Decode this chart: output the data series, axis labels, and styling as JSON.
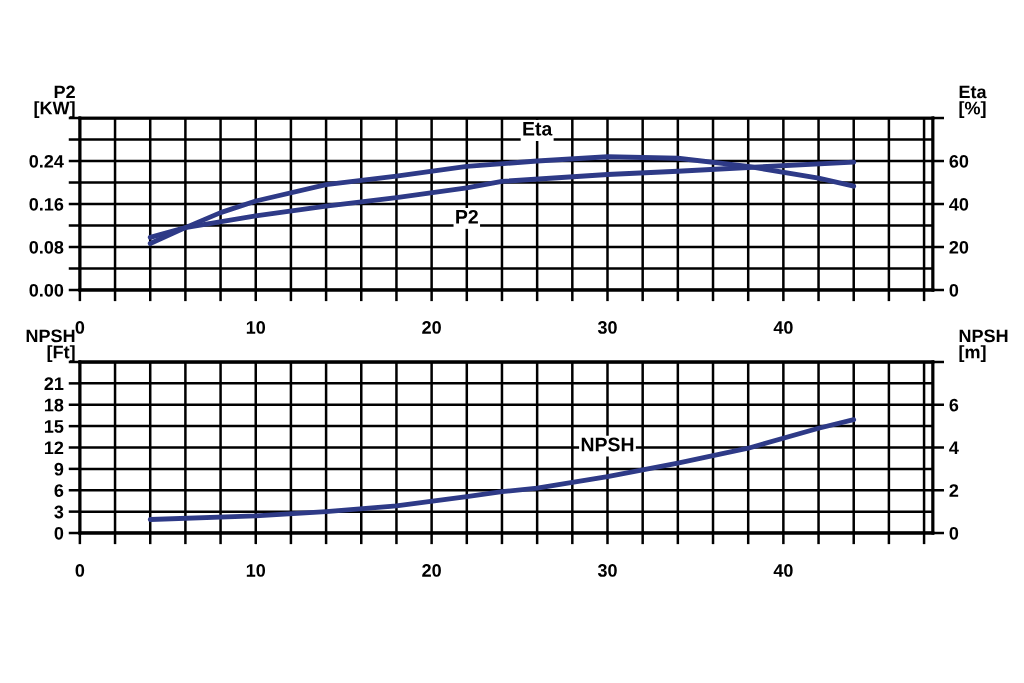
{
  "chart_data": [
    {
      "type": "line",
      "ylabel": "P2\n[KW]",
      "y2label": "Eta\n[%]",
      "grid": true,
      "line_style": "solid",
      "marker": "none",
      "xlim": [
        0,
        48.5
      ],
      "xticks": [
        0,
        {
          "value": 2,
          "label": null
        },
        {
          "value": 4,
          "label": null
        },
        {
          "value": 6,
          "label": null
        },
        {
          "value": 8,
          "label": null
        },
        10,
        {
          "value": 12,
          "label": null
        },
        {
          "value": 14,
          "label": null
        },
        {
          "value": 16,
          "label": null
        },
        {
          "value": 18,
          "label": null
        },
        20,
        {
          "value": 22,
          "label": null
        },
        {
          "value": 24,
          "label": null
        },
        {
          "value": 26,
          "label": null
        },
        {
          "value": 28,
          "label": null
        },
        30,
        {
          "value": 32,
          "label": null
        },
        {
          "value": 34,
          "label": null
        },
        {
          "value": 36,
          "label": null
        },
        {
          "value": 38,
          "label": null
        },
        40,
        {
          "value": 42,
          "label": null
        },
        {
          "value": 44,
          "label": null
        },
        {
          "value": 46,
          "label": null
        },
        {
          "value": 48,
          "label": null
        }
      ],
      "ylim": [
        0,
        0.32
      ],
      "yticks": [
        {
          "value": 0,
          "label": "0.00"
        },
        {
          "value": 0.04,
          "label": null
        },
        {
          "value": 0.08,
          "label": "0.08"
        },
        {
          "value": 0.12,
          "label": null
        },
        {
          "value": 0.16,
          "label": "0.16"
        },
        {
          "value": 0.2,
          "label": null
        },
        {
          "value": 0.24,
          "label": "0.24"
        },
        {
          "value": 0.28,
          "label": null
        },
        {
          "value": 0.32,
          "label": null
        }
      ],
      "y2lim": [
        0,
        80
      ],
      "y2ticks": [
        0,
        20,
        40,
        60,
        {
          "value": 80,
          "label": null
        }
      ],
      "series": [
        {
          "name": "Eta",
          "axis": "y2",
          "color": "#2e3a87",
          "x": [
            4,
            6,
            8,
            10,
            14,
            18,
            22,
            26,
            30,
            34,
            38,
            42,
            44
          ],
          "values": [
            21.6,
            29,
            36,
            41.4,
            49,
            53,
            57.5,
            60,
            62,
            61.3,
            57.5,
            52,
            48.3
          ]
        },
        {
          "name": "P2",
          "color": "#2e3a87",
          "x": [
            4,
            6,
            10,
            14,
            18,
            22,
            24,
            30,
            34,
            38,
            44
          ],
          "values": [
            0.098,
            0.116,
            0.138,
            0.156,
            0.172,
            0.19,
            0.202,
            0.215,
            0.221,
            0.228,
            0.238
          ]
        }
      ]
    },
    {
      "type": "line",
      "ylabel": "NPSH\n[Ft]",
      "y2label": "NPSH\n[m]",
      "grid": true,
      "line_style": "solid",
      "marker": "none",
      "xlim": [
        0,
        48.5
      ],
      "xticks": [
        0,
        {
          "value": 2,
          "label": null
        },
        {
          "value": 4,
          "label": null
        },
        {
          "value": 6,
          "label": null
        },
        {
          "value": 8,
          "label": null
        },
        10,
        {
          "value": 12,
          "label": null
        },
        {
          "value": 14,
          "label": null
        },
        {
          "value": 16,
          "label": null
        },
        {
          "value": 18,
          "label": null
        },
        20,
        {
          "value": 22,
          "label": null
        },
        {
          "value": 24,
          "label": null
        },
        {
          "value": 26,
          "label": null
        },
        {
          "value": 28,
          "label": null
        },
        30,
        {
          "value": 32,
          "label": null
        },
        {
          "value": 34,
          "label": null
        },
        {
          "value": 36,
          "label": null
        },
        {
          "value": 38,
          "label": null
        },
        40,
        {
          "value": 42,
          "label": null
        },
        {
          "value": 44,
          "label": null
        },
        {
          "value": 46,
          "label": null
        },
        {
          "value": 48,
          "label": null
        }
      ],
      "ylim": [
        0,
        24
      ],
      "yticks": [
        0,
        3,
        6,
        9,
        12,
        15,
        18,
        21,
        {
          "value": 24,
          "label": null
        }
      ],
      "y2lim": [
        0,
        8
      ],
      "y2ticks": [
        0,
        2,
        4,
        6,
        {
          "value": 8,
          "label": null
        }
      ],
      "series": [
        {
          "name": "NPSH",
          "color": "#2e3a87",
          "x": [
            4,
            10,
            14,
            18,
            22,
            24,
            26,
            30,
            34,
            38,
            42,
            44
          ],
          "values": [
            1.9,
            2.4,
            3.0,
            3.8,
            5.1,
            5.8,
            6.3,
            7.9,
            9.8,
            11.9,
            14.7,
            15.9
          ]
        }
      ]
    }
  ]
}
